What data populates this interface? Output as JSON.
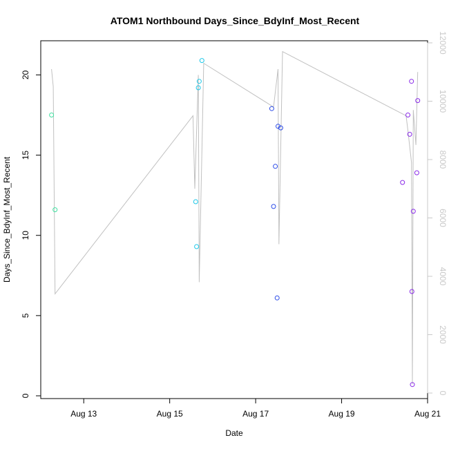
{
  "chart_data": {
    "type": "scatter",
    "title": "ATOM1 Northbound Days_Since_BdyInf_Most_Recent",
    "xlabel": "Date",
    "ylabel": "Days_Since_BdyInf_Most_Recent",
    "x_ticks": [
      "Aug 13",
      "Aug 15",
      "Aug 17",
      "Aug 19",
      "Aug 21"
    ],
    "xlim": [
      "2023-08-12 00:00",
      "2023-08-21 00:00"
    ],
    "x_tick_values": [
      "2023-08-13 00:00",
      "2023-08-15 00:00",
      "2023-08-17 00:00",
      "2023-08-19 00:00",
      "2023-08-21 00:00"
    ],
    "ylim": [
      0,
      22
    ],
    "y_ticks": [
      0,
      5,
      10,
      15,
      20
    ],
    "secondary_axis": {
      "ticks": [
        0,
        2000,
        4000,
        6000,
        8000,
        10000,
        12000
      ],
      "ylim": [
        0,
        12000
      ],
      "color": "#c8c8c8"
    },
    "grid": false,
    "legend": "none",
    "points": [
      {
        "x": "2023-08-12 06:00",
        "y": 17.5,
        "color": "#3fe0a0"
      },
      {
        "x": "2023-08-12 08:00",
        "y": 11.6,
        "color": "#3fe0a0"
      },
      {
        "x": "2023-08-15 14:30",
        "y": 12.1,
        "color": "#1ec8e8"
      },
      {
        "x": "2023-08-15 15:00",
        "y": 9.3,
        "color": "#1ec8e8"
      },
      {
        "x": "2023-08-15 16:00",
        "y": 19.2,
        "color": "#1ec8e8"
      },
      {
        "x": "2023-08-15 16:30",
        "y": 19.6,
        "color": "#1ec8e8"
      },
      {
        "x": "2023-08-15 18:00",
        "y": 20.9,
        "color": "#1ec8e8"
      },
      {
        "x": "2023-08-17 09:00",
        "y": 17.9,
        "color": "#2a4ae8"
      },
      {
        "x": "2023-08-17 10:00",
        "y": 11.8,
        "color": "#2a4ae8"
      },
      {
        "x": "2023-08-17 11:00",
        "y": 14.3,
        "color": "#2a4ae8"
      },
      {
        "x": "2023-08-17 12:00",
        "y": 6.1,
        "color": "#2a4ae8"
      },
      {
        "x": "2023-08-17 12:30",
        "y": 16.8,
        "color": "#2a4ae8"
      },
      {
        "x": "2023-08-17 14:00",
        "y": 16.7,
        "color": "#2a4ae8"
      },
      {
        "x": "2023-08-20 10:00",
        "y": 13.3,
        "color": "#8a2be8"
      },
      {
        "x": "2023-08-20 13:00",
        "y": 17.5,
        "color": "#8a2be8"
      },
      {
        "x": "2023-08-20 14:00",
        "y": 16.3,
        "color": "#8a2be8"
      },
      {
        "x": "2023-08-20 15:00",
        "y": 19.6,
        "color": "#8a2be8"
      },
      {
        "x": "2023-08-20 15:15",
        "y": 6.5,
        "color": "#8a2be8"
      },
      {
        "x": "2023-08-20 15:30",
        "y": 0.7,
        "color": "#8a2be8"
      },
      {
        "x": "2023-08-20 16:00",
        "y": 11.5,
        "color": "#8a2be8"
      },
      {
        "x": "2023-08-20 18:00",
        "y": 13.9,
        "color": "#8a2be8"
      },
      {
        "x": "2023-08-20 18:30",
        "y": 18.4,
        "color": "#8a2be8"
      }
    ],
    "secondary_line": {
      "color": "#c0c0c0",
      "points": [
        {
          "x": "2023-08-12 06:00",
          "y": 11100
        },
        {
          "x": "2023-08-12 07:00",
          "y": 10500
        },
        {
          "x": "2023-08-12 08:00",
          "y": 3400
        },
        {
          "x": "2023-08-15 13:00",
          "y": 9500
        },
        {
          "x": "2023-08-15 14:00",
          "y": 7000
        },
        {
          "x": "2023-08-15 16:00",
          "y": 10900
        },
        {
          "x": "2023-08-15 16:30",
          "y": 3800
        },
        {
          "x": "2023-08-15 19:00",
          "y": 11300
        },
        {
          "x": "2023-08-17 10:00",
          "y": 9800
        },
        {
          "x": "2023-08-17 12:30",
          "y": 11100
        },
        {
          "x": "2023-08-17 13:00",
          "y": 5100
        },
        {
          "x": "2023-08-17 15:00",
          "y": 11700
        },
        {
          "x": "2023-08-20 12:00",
          "y": 9500
        },
        {
          "x": "2023-08-20 13:00",
          "y": 9000
        },
        {
          "x": "2023-08-20 15:00",
          "y": 7900
        },
        {
          "x": "2023-08-20 15:30",
          "y": 300
        },
        {
          "x": "2023-08-20 16:00",
          "y": 9700
        },
        {
          "x": "2023-08-20 17:30",
          "y": 8500
        },
        {
          "x": "2023-08-20 18:30",
          "y": 11000
        }
      ]
    }
  }
}
